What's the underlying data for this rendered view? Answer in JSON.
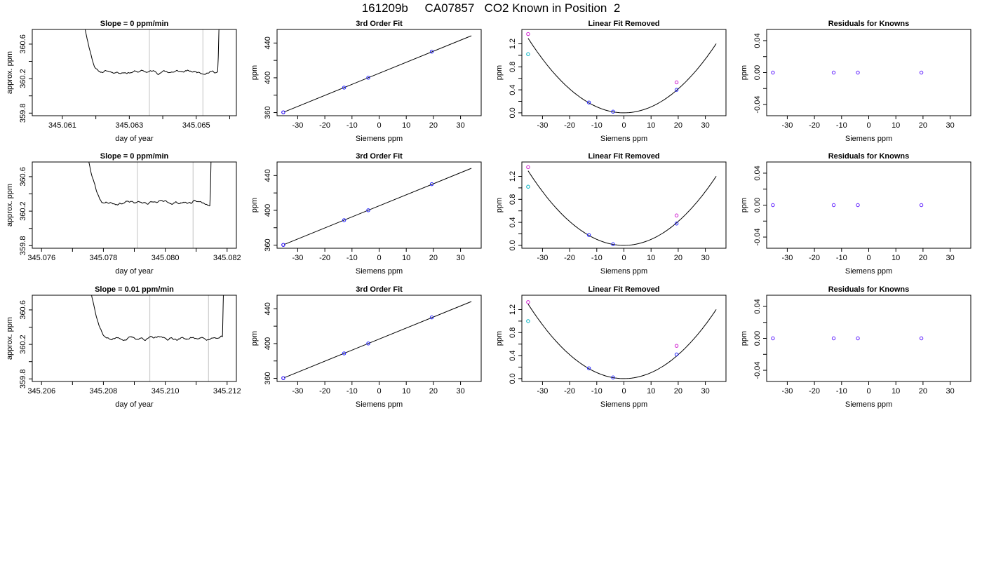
{
  "page_title": "161209b     CA07857   CO2 Known in Position  2",
  "chart_data": [
    {
      "type": "line",
      "title": "Slope =  0  ppm/min",
      "xlabel": "day of year",
      "ylabel": "approx. ppm",
      "xlim": [
        345.0601,
        345.0662
      ],
      "ylim": [
        359.77,
        360.77
      ],
      "xticks": [
        345.061,
        345.062,
        345.063,
        345.064,
        345.065,
        345.066
      ],
      "xticklabels": [
        "345.061",
        "",
        "345.063",
        "",
        "345.065",
        ""
      ],
      "yticks": [
        359.8,
        360.0,
        360.2,
        360.4,
        360.6
      ],
      "yticklabels": [
        "359.8",
        "",
        "360.2",
        "",
        "360.6"
      ],
      "vlines": [
        345.0636,
        345.0652
      ],
      "vline_color": "#cccccc",
      "trace_start": 345.0614,
      "trace_end": 345.0658,
      "plateau_level": 360.28,
      "step_width": 0.0007,
      "rise_width": 0.00015,
      "noise_seed": 11
    },
    {
      "type": "scatter_fit",
      "title": "3rd Order Fit",
      "xlabel": "Siemens ppm",
      "ylabel": "ppm",
      "xlim": [
        -37.6,
        37.6
      ],
      "ylim": [
        356.4,
        455.6
      ],
      "xticks": [
        -30,
        -20,
        -10,
        0,
        10,
        20,
        30
      ],
      "yticks": [
        360,
        380,
        400,
        420,
        440
      ],
      "yticklabels": [
        "360",
        "",
        "400",
        "",
        "440"
      ],
      "fit": {
        "slope": 1.27,
        "intercept": 405.16,
        "range": [
          -35,
          34
        ]
      },
      "points": [
        {
          "x": -35.3,
          "y": 360.3,
          "color": "#d020d0"
        },
        {
          "x": -35.3,
          "y": 360.3,
          "color": "#2020ff"
        },
        {
          "x": -12.9,
          "y": 388.7,
          "color": "#2020ff"
        },
        {
          "x": -4.0,
          "y": 400.1,
          "color": "#2020ff"
        },
        {
          "x": 19.4,
          "y": 430.1,
          "color": "#2020ff"
        }
      ]
    },
    {
      "type": "scatter_fit",
      "title": "Linear Fit Removed",
      "xlabel": "Siemens ppm",
      "ylabel": "ppm",
      "xlim": [
        -37.6,
        37.6
      ],
      "ylim": [
        -0.05,
        1.45
      ],
      "xticks": [
        -30,
        -20,
        -10,
        0,
        10,
        20,
        30
      ],
      "yticks": [
        0.0,
        0.2,
        0.4,
        0.6,
        0.8,
        1.0,
        1.2
      ],
      "yticklabels": [
        "0.0",
        "",
        "0.4",
        "",
        "0.8",
        "",
        "1.2"
      ],
      "curve": {
        "a": 0.00104,
        "range": [
          -35.3,
          34
        ]
      },
      "points": [
        {
          "x": -35.3,
          "y": 1.37,
          "color": "#d020d0"
        },
        {
          "x": -35.3,
          "y": 1.02,
          "color": "#00b0c0"
        },
        {
          "x": -12.9,
          "y": 0.18,
          "color": "#2020ff"
        },
        {
          "x": -4.0,
          "y": 0.02,
          "color": "#2020ff"
        },
        {
          "x": 19.4,
          "y": 0.4,
          "color": "#2020ff"
        },
        {
          "x": 19.4,
          "y": 0.53,
          "color": "#d020d0"
        }
      ]
    },
    {
      "type": "scatter",
      "title": "Residuals for Knowns",
      "xlabel": "Siemens ppm",
      "ylabel": "ppm",
      "xlim": [
        -37.6,
        37.6
      ],
      "ylim": [
        -0.054,
        0.054
      ],
      "xticks": [
        -30,
        -20,
        -10,
        0,
        10,
        20,
        30
      ],
      "yticks": [
        -0.04,
        -0.02,
        0.0,
        0.02,
        0.04
      ],
      "yticklabels": [
        "-0.04",
        "",
        "0.00",
        "",
        "0.04"
      ],
      "points": [
        {
          "x": -35.3,
          "y": 0,
          "color": "#6020ff"
        },
        {
          "x": -12.9,
          "y": 0,
          "color": "#6020ff"
        },
        {
          "x": -4.0,
          "y": 0,
          "color": "#6020ff"
        },
        {
          "x": 19.4,
          "y": 0,
          "color": "#6020ff"
        }
      ]
    },
    {
      "type": "line",
      "title": "Slope =  0  ppm/min",
      "xlabel": "day of year",
      "ylabel": "approx. ppm",
      "xlim": [
        345.0757,
        345.0823
      ],
      "ylim": [
        359.77,
        360.77
      ],
      "xticks": [
        345.076,
        345.077,
        345.078,
        345.079,
        345.08,
        345.081,
        345.082
      ],
      "xticklabels": [
        "345.076",
        "",
        "345.078",
        "",
        "345.080",
        "",
        "345.082"
      ],
      "yticks": [
        359.8,
        360.0,
        360.2,
        360.4,
        360.6
      ],
      "yticklabels": [
        "359.8",
        "",
        "360.2",
        "",
        "360.6"
      ],
      "vlines": [
        345.0791,
        345.0809
      ],
      "vline_color": "#cccccc",
      "trace_start": 345.0772,
      "trace_end": 345.0816,
      "plateau_level": 360.3,
      "step_width": 0.0008,
      "rise_width": 0.00015,
      "noise_seed": 23
    },
    {
      "type": "scatter_fit",
      "title": "3rd Order Fit",
      "xlabel": "Siemens ppm",
      "ylabel": "ppm",
      "xlim": [
        -37.6,
        37.6
      ],
      "ylim": [
        356.4,
        455.6
      ],
      "xticks": [
        -30,
        -20,
        -10,
        0,
        10,
        20,
        30
      ],
      "yticks": [
        360,
        380,
        400,
        420,
        440
      ],
      "yticklabels": [
        "360",
        "",
        "400",
        "",
        "440"
      ],
      "fit": {
        "slope": 1.27,
        "intercept": 405.16,
        "range": [
          -35,
          34
        ]
      },
      "points": [
        {
          "x": -35.3,
          "y": 360.3,
          "color": "#d020d0"
        },
        {
          "x": -35.3,
          "y": 360.3,
          "color": "#2020ff"
        },
        {
          "x": -12.9,
          "y": 388.7,
          "color": "#2020ff"
        },
        {
          "x": -4.0,
          "y": 400.1,
          "color": "#2020ff"
        },
        {
          "x": 19.4,
          "y": 430.1,
          "color": "#2020ff"
        }
      ]
    },
    {
      "type": "scatter_fit",
      "title": "Linear Fit Removed",
      "xlabel": "Siemens ppm",
      "ylabel": "ppm",
      "xlim": [
        -37.6,
        37.6
      ],
      "ylim": [
        -0.05,
        1.45
      ],
      "xticks": [
        -30,
        -20,
        -10,
        0,
        10,
        20,
        30
      ],
      "yticks": [
        0.0,
        0.2,
        0.4,
        0.6,
        0.8,
        1.0,
        1.2
      ],
      "yticklabels": [
        "0.0",
        "",
        "0.4",
        "",
        "0.8",
        "",
        "1.2"
      ],
      "curve": {
        "a": 0.00104,
        "range": [
          -35.3,
          34
        ]
      },
      "points": [
        {
          "x": -35.3,
          "y": 1.36,
          "color": "#d020d0"
        },
        {
          "x": -35.3,
          "y": 1.02,
          "color": "#00b0c0"
        },
        {
          "x": -12.9,
          "y": 0.18,
          "color": "#2020ff"
        },
        {
          "x": -4.0,
          "y": 0.02,
          "color": "#2020ff"
        },
        {
          "x": 19.4,
          "y": 0.38,
          "color": "#2020ff"
        },
        {
          "x": 19.4,
          "y": 0.52,
          "color": "#d020d0"
        }
      ]
    },
    {
      "type": "scatter",
      "title": "Residuals for Knowns",
      "xlabel": "Siemens ppm",
      "ylabel": "ppm",
      "xlim": [
        -37.6,
        37.6
      ],
      "ylim": [
        -0.054,
        0.054
      ],
      "xticks": [
        -30,
        -20,
        -10,
        0,
        10,
        20,
        30
      ],
      "yticks": [
        -0.04,
        -0.02,
        0.0,
        0.02,
        0.04
      ],
      "yticklabels": [
        "-0.04",
        "",
        "0.00",
        "",
        "0.04"
      ],
      "points": [
        {
          "x": -35.3,
          "y": 0,
          "color": "#6020ff"
        },
        {
          "x": -12.9,
          "y": 0,
          "color": "#6020ff"
        },
        {
          "x": -4.0,
          "y": 0,
          "color": "#6020ff"
        },
        {
          "x": 19.4,
          "y": 0,
          "color": "#6020ff"
        }
      ]
    },
    {
      "type": "line",
      "title": "Slope =  0.01  ppm/min",
      "xlabel": "day of year",
      "ylabel": "approx. ppm",
      "xlim": [
        345.2057,
        345.2123
      ],
      "ylim": [
        359.77,
        360.77
      ],
      "xticks": [
        345.206,
        345.207,
        345.208,
        345.209,
        345.21,
        345.211,
        345.212
      ],
      "xticklabels": [
        "345.206",
        "",
        "345.208",
        "",
        "345.210",
        "",
        "345.212"
      ],
      "yticks": [
        359.8,
        360.0,
        360.2,
        360.4,
        360.6
      ],
      "yticklabels": [
        "359.8",
        "",
        "360.2",
        "",
        "360.6"
      ],
      "vlines": [
        345.2095,
        345.2114
      ],
      "vline_color": "#cccccc",
      "trace_start": 345.2073,
      "trace_end": 345.212,
      "plateau_level": 360.27,
      "step_width": 0.0008,
      "rise_width": 0.00015,
      "noise_seed": 37
    },
    {
      "type": "scatter_fit",
      "title": "3rd Order Fit",
      "xlabel": "Siemens ppm",
      "ylabel": "ppm",
      "xlim": [
        -37.6,
        37.6
      ],
      "ylim": [
        356.4,
        455.6
      ],
      "xticks": [
        -30,
        -20,
        -10,
        0,
        10,
        20,
        30
      ],
      "yticks": [
        360,
        380,
        400,
        420,
        440
      ],
      "yticklabels": [
        "360",
        "",
        "400",
        "",
        "440"
      ],
      "fit": {
        "slope": 1.27,
        "intercept": 405.16,
        "range": [
          -35,
          34
        ]
      },
      "points": [
        {
          "x": -35.3,
          "y": 360.3,
          "color": "#d020d0"
        },
        {
          "x": -35.3,
          "y": 360.3,
          "color": "#2020ff"
        },
        {
          "x": -12.9,
          "y": 388.7,
          "color": "#2020ff"
        },
        {
          "x": -4.0,
          "y": 400.1,
          "color": "#2020ff"
        },
        {
          "x": 19.4,
          "y": 430.1,
          "color": "#2020ff"
        }
      ]
    },
    {
      "type": "scatter_fit",
      "title": "Linear Fit Removed",
      "xlabel": "Siemens ppm",
      "ylabel": "ppm",
      "xlim": [
        -37.6,
        37.6
      ],
      "ylim": [
        -0.05,
        1.45
      ],
      "xticks": [
        -30,
        -20,
        -10,
        0,
        10,
        20,
        30
      ],
      "yticks": [
        0.0,
        0.2,
        0.4,
        0.6,
        0.8,
        1.0,
        1.2
      ],
      "yticklabels": [
        "0.0",
        "",
        "0.4",
        "",
        "0.8",
        "",
        "1.2"
      ],
      "curve": {
        "a": 0.00104,
        "range": [
          -35.3,
          34
        ]
      },
      "points": [
        {
          "x": -35.3,
          "y": 1.33,
          "color": "#d020d0"
        },
        {
          "x": -35.3,
          "y": 1.0,
          "color": "#00b0c0"
        },
        {
          "x": -12.9,
          "y": 0.18,
          "color": "#2020ff"
        },
        {
          "x": -4.0,
          "y": 0.02,
          "color": "#2020ff"
        },
        {
          "x": 19.4,
          "y": 0.42,
          "color": "#2020ff"
        },
        {
          "x": 19.4,
          "y": 0.57,
          "color": "#d020d0"
        }
      ]
    },
    {
      "type": "scatter",
      "title": "Residuals for Knowns",
      "xlabel": "Siemens ppm",
      "ylabel": "ppm",
      "xlim": [
        -37.6,
        37.6
      ],
      "ylim": [
        -0.054,
        0.054
      ],
      "xticks": [
        -30,
        -20,
        -10,
        0,
        10,
        20,
        30
      ],
      "yticks": [
        -0.04,
        -0.02,
        0.0,
        0.02,
        0.04
      ],
      "yticklabels": [
        "-0.04",
        "",
        "0.00",
        "",
        "0.04"
      ],
      "points": [
        {
          "x": -35.3,
          "y": 0,
          "color": "#6020ff"
        },
        {
          "x": -12.9,
          "y": 0,
          "color": "#6020ff"
        },
        {
          "x": -4.0,
          "y": 0,
          "color": "#6020ff"
        },
        {
          "x": 19.4,
          "y": 0,
          "color": "#6020ff"
        }
      ]
    }
  ]
}
